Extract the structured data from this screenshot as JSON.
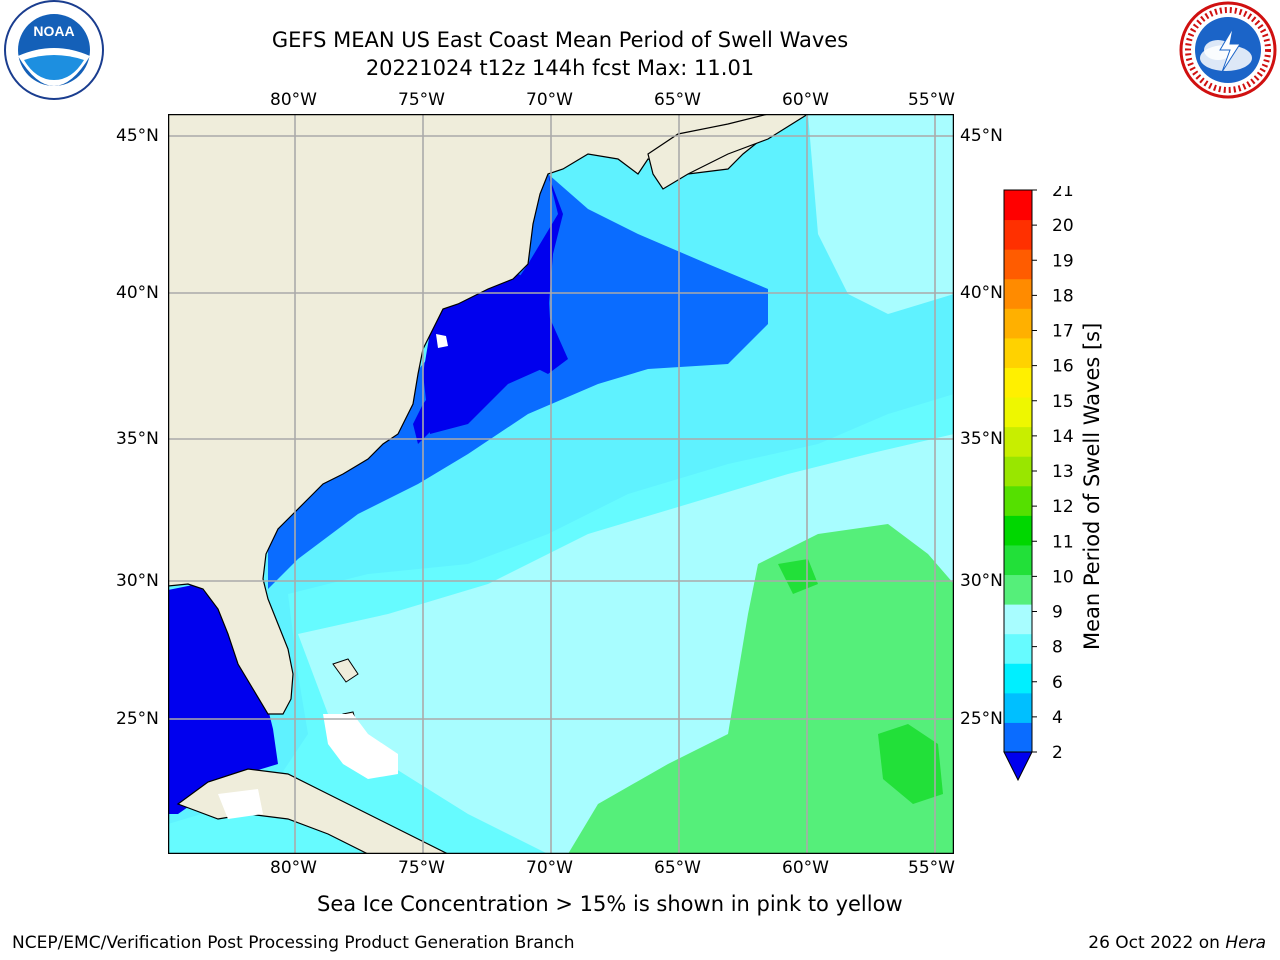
{
  "header": {
    "title_line1": "GEFS MEAN US East Coast Mean Period of Swell Waves",
    "title_line2": "20221024 t12z 144h fcst   Max: 11.01"
  },
  "logos": {
    "noaa_ring_text": "NATIONAL OCEANIC AND ATMOSPHERIC ADMINISTRATION · U.S. DEPARTMENT OF COMMERCE",
    "noaa_center": "NOAA",
    "nws_ring_text": "NATIONAL WEATHER SERVICE"
  },
  "map": {
    "lon_labels": [
      "80°W",
      "75°W",
      "70°W",
      "65°W",
      "60°W",
      "55°W"
    ],
    "lat_labels": [
      "45°N",
      "40°N",
      "35°N",
      "30°N",
      "25°N"
    ],
    "ocean_color": "#5ff2ff",
    "land_color": "#efeddb"
  },
  "colorbar": {
    "label": "Mean Period of Swell Waves [s]",
    "ticks": [
      "2",
      "4",
      "6",
      "8",
      "9",
      "10",
      "11",
      "12",
      "13",
      "14",
      "15",
      "16",
      "17",
      "18",
      "19",
      "20",
      "21"
    ],
    "colors": [
      "#0a6cff",
      "#00bfff",
      "#00efff",
      "#66fbff",
      "#a8fdff",
      "#55ef7a",
      "#22e039",
      "#00d700",
      "#55e000",
      "#99e600",
      "#c8ee00",
      "#eef700",
      "#fff000",
      "#ffd200",
      "#ffb000",
      "#ff8b00",
      "#ff5c00",
      "#ff3000",
      "#ff0000"
    ],
    "extend_color": "#0000ee"
  },
  "footer": {
    "sea_ice_note": "Sea Ice Concentration > 15% is shown in pink to yellow",
    "branch": "NCEP/EMC/Verification Post Processing Product Generation Branch",
    "date_prefix": "26 Oct 2022 on ",
    "host": "Hera"
  }
}
